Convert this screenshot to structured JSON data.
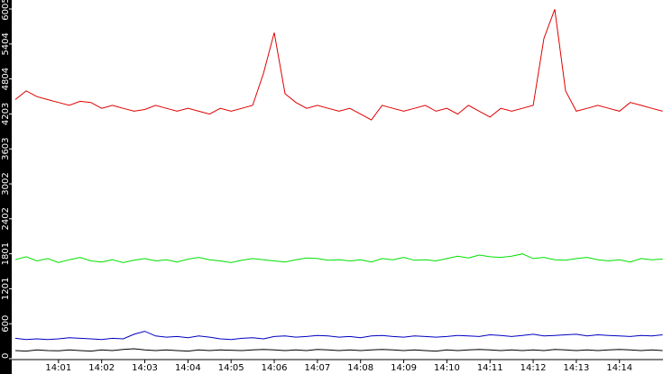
{
  "chart_data": {
    "type": "line",
    "categories": [
      null,
      null,
      null,
      null,
      "14:01",
      null,
      null,
      null,
      "14:02",
      null,
      null,
      null,
      "14:03",
      null,
      null,
      null,
      "14:04",
      null,
      null,
      null,
      "14:05",
      null,
      null,
      null,
      "14:06",
      null,
      null,
      null,
      "14:07",
      null,
      null,
      null,
      "14:08",
      null,
      null,
      null,
      "14:09",
      null,
      null,
      null,
      "14:10",
      null,
      null,
      null,
      "14:11",
      null,
      null,
      null,
      "14:12",
      null,
      null,
      null,
      "14:13",
      null,
      null,
      null,
      "14:14",
      null,
      null,
      null,
      null
    ],
    "series": [
      {
        "color": "#e00000",
        "values": [
          4450,
          4600,
          4500,
          4450,
          4400,
          4350,
          4420,
          4400,
          4300,
          4350,
          4300,
          4250,
          4280,
          4350,
          4300,
          4250,
          4300,
          4250,
          4200,
          4300,
          4250,
          4300,
          4350,
          4900,
          5600,
          4550,
          4400,
          4300,
          4350,
          4300,
          4250,
          4300,
          4200,
          4100,
          4350,
          4300,
          4250,
          4300,
          4350,
          4250,
          4300,
          4200,
          4350,
          4250,
          4150,
          4300,
          4250,
          4300,
          4350,
          5500,
          6000,
          4600,
          4250,
          4300,
          4350,
          4300,
          4250,
          4400,
          4350,
          4300,
          4250
        ]
      },
      {
        "color": "#00e000",
        "values": [
          1700,
          1750,
          1680,
          1720,
          1650,
          1700,
          1740,
          1680,
          1660,
          1700,
          1650,
          1690,
          1720,
          1680,
          1700,
          1660,
          1710,
          1740,
          1700,
          1680,
          1650,
          1690,
          1720,
          1700,
          1680,
          1660,
          1700,
          1730,
          1720,
          1690,
          1700,
          1680,
          1700,
          1660,
          1720,
          1700,
          1740,
          1690,
          1700,
          1680,
          1720,
          1760,
          1730,
          1780,
          1750,
          1740,
          1760,
          1800,
          1720,
          1740,
          1700,
          1690,
          1720,
          1740,
          1700,
          1680,
          1700,
          1660,
          1720,
          1700,
          1710
        ]
      },
      {
        "color": "#0000c0",
        "values": [
          350,
          330,
          340,
          330,
          340,
          360,
          350,
          340,
          330,
          350,
          340,
          420,
          470,
          390,
          370,
          380,
          360,
          390,
          370,
          340,
          330,
          350,
          360,
          340,
          380,
          390,
          370,
          380,
          400,
          390,
          370,
          380,
          360,
          390,
          400,
          380,
          370,
          390,
          380,
          370,
          380,
          400,
          390,
          380,
          410,
          400,
          380,
          400,
          420,
          390,
          400,
          410,
          420,
          390,
          410,
          400,
          390,
          380,
          400,
          390,
          410
        ]
      },
      {
        "color": "#000000",
        "values": [
          140,
          130,
          150,
          140,
          135,
          150,
          140,
          130,
          150,
          140,
          160,
          170,
          150,
          140,
          150,
          140,
          130,
          150,
          140,
          150,
          145,
          140,
          150,
          160,
          150,
          140,
          150,
          140,
          160,
          150,
          140,
          150,
          140,
          150,
          160,
          150,
          140,
          150,
          140,
          130,
          150,
          140,
          150,
          160,
          150,
          140,
          150,
          140,
          150,
          140,
          160,
          150,
          140,
          150,
          140,
          150,
          160,
          150,
          140,
          150,
          140
        ]
      }
    ],
    "ylim": [
      0,
      6005
    ],
    "yticks": [
      0,
      600,
      1201,
      1801,
      2402,
      3002,
      3603,
      4203,
      4804,
      5404,
      6005
    ]
  }
}
